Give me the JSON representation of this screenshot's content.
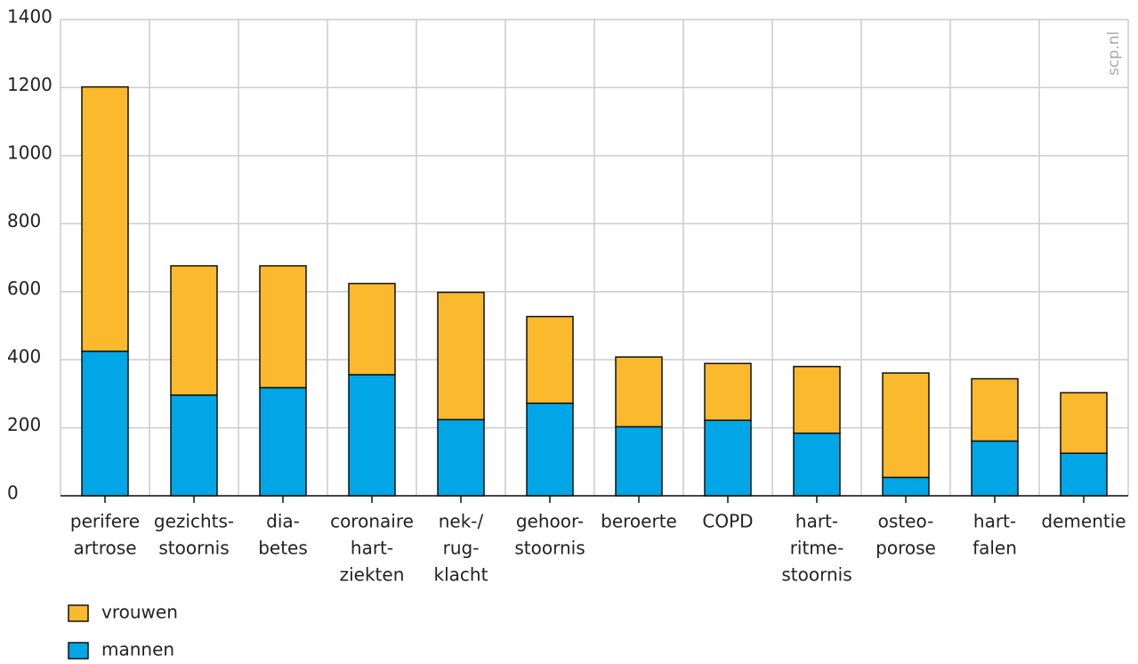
{
  "chart_data": {
    "type": "stacked_bar",
    "source": "scp.nl",
    "categories": [
      [
        "perifere",
        "artrose"
      ],
      [
        "gezichts-",
        "stoornis"
      ],
      [
        "dia-",
        "betes"
      ],
      [
        "coronaire",
        "hart-",
        "ziekten"
      ],
      [
        "nek-/",
        "rug-",
        "klacht"
      ],
      [
        "gehoor-",
        "stoornis"
      ],
      [
        "beroerte"
      ],
      [
        "COPD"
      ],
      [
        "hart-",
        "ritme-",
        "stoornis"
      ],
      [
        "osteo-",
        "porose"
      ],
      [
        "hart-",
        "falen"
      ],
      [
        "dementie"
      ]
    ],
    "series": [
      {
        "name": "mannen",
        "color": "#00a6e5",
        "values": [
          425,
          296,
          318,
          356,
          224,
          272,
          203,
          222,
          184,
          54,
          161,
          125
        ]
      },
      {
        "name": "vrouwen",
        "color": "#fbb92d",
        "values": [
          777,
          380,
          358,
          268,
          374,
          255,
          205,
          167,
          196,
          307,
          183,
          178
        ]
      }
    ],
    "ylim": [
      0,
      1400
    ],
    "yticks": [
      0,
      200,
      400,
      600,
      800,
      1000,
      1200,
      1400
    ],
    "grid": true
  }
}
